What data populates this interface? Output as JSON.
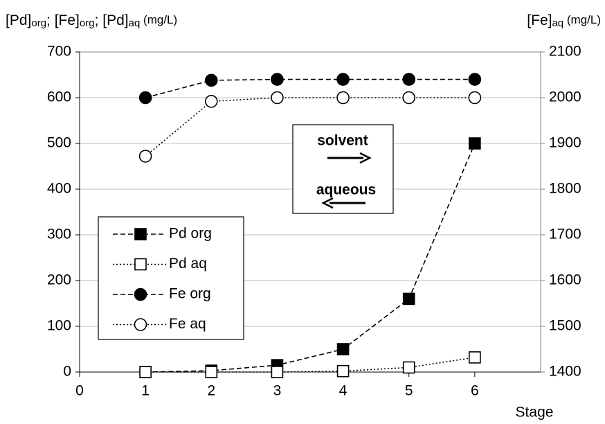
{
  "chart_data": {
    "type": "line",
    "y_label": [
      "[Pd]",
      "org",
      "; [Fe]",
      "org",
      "; [Pd]",
      "aq",
      " (mg/L)"
    ],
    "y2_label": [
      "[Fe]",
      "aq",
      " (mg/L)"
    ],
    "x_label": "Stage",
    "x": [
      1,
      2,
      3,
      4,
      5,
      6
    ],
    "xlim": [
      0,
      7
    ],
    "xticks": [
      0,
      1,
      2,
      3,
      4,
      5,
      6
    ],
    "ylim": [
      0,
      700
    ],
    "yticks": [
      0,
      100,
      200,
      300,
      400,
      500,
      600,
      700
    ],
    "y2lim": [
      1400,
      2100
    ],
    "y2ticks": [
      1400,
      1500,
      1600,
      1700,
      1800,
      1900,
      2000,
      2100
    ],
    "grid": true,
    "legend": "lower left",
    "annotations": [
      "solvent",
      "aqueous"
    ],
    "series": [
      {
        "name": "Pd org",
        "color": "#000000",
        "line_style": "dashed",
        "marker": "square",
        "filled": true,
        "values": [
          0,
          3,
          15,
          50,
          160,
          500
        ]
      },
      {
        "name": "Pd aq",
        "color": "#000000",
        "line_style": "dotted",
        "marker": "square",
        "filled": false,
        "values": [
          0,
          0,
          0,
          2,
          10,
          32
        ]
      },
      {
        "name": "Fe org",
        "color": "#000000",
        "line_style": "dashed",
        "marker": "circle",
        "filled": true,
        "values": [
          600,
          638,
          640,
          640,
          640,
          640
        ]
      },
      {
        "name": "Fe aq",
        "color": "#000000",
        "line_style": "dotted",
        "marker": "circle",
        "filled": false,
        "axis": "y2",
        "values": [
          1872,
          1992,
          2000,
          2000,
          2000,
          2000
        ]
      }
    ]
  }
}
